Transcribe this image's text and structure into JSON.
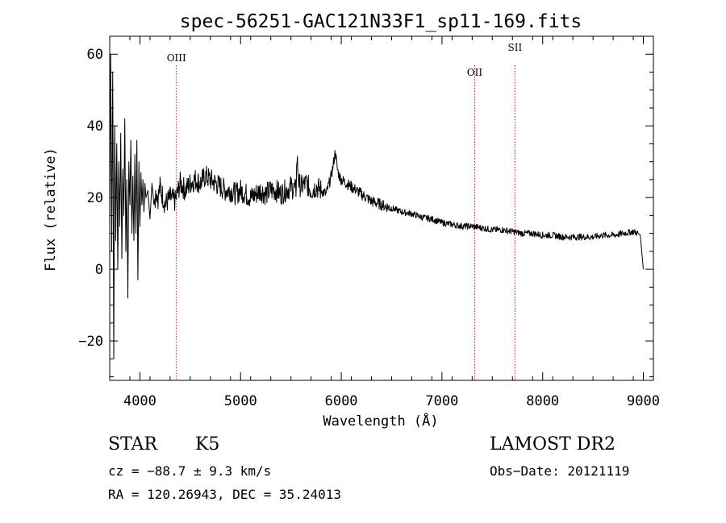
{
  "chart_data": {
    "type": "line",
    "title": "spec-56251-GAC121N33F1_sp11-169.fits",
    "xlabel": "Wavelength (Å)",
    "ylabel": "Flux (relative)",
    "xlim": [
      3700,
      9100
    ],
    "ylim": [
      -31,
      65
    ],
    "xticks": [
      4000,
      5000,
      6000,
      7000,
      8000,
      9000
    ],
    "yticks": [
      -20,
      0,
      20,
      40,
      60
    ],
    "grid": false,
    "line_color": "#000000",
    "marker_color": "#aa2222",
    "lines": [
      {
        "label": "OIII",
        "x": 4363,
        "label_y": 58
      },
      {
        "label": "OII",
        "x": 7325,
        "label_y": 54
      },
      {
        "label": "SII",
        "x": 7725,
        "label_y": 61
      }
    ],
    "series": [
      {
        "x": [
          3700,
          3710,
          3720,
          3730,
          3740,
          3750,
          3760,
          3770,
          3780,
          3790,
          3800,
          3810,
          3820,
          3830,
          3840,
          3850,
          3860,
          3870,
          3880,
          3890,
          3900,
          3910,
          3920,
          3930,
          3940,
          3950,
          3960,
          3970,
          3980,
          3990,
          4000,
          4010,
          4020,
          4030,
          4040,
          4050,
          4060,
          4080,
          4100,
          4120,
          4140,
          4160,
          4180,
          4200,
          4250,
          4300,
          4350,
          4400,
          4450,
          4500,
          4550,
          4600,
          4650,
          4700,
          4750,
          4800,
          4850,
          4900,
          4950,
          5000,
          5050,
          5100,
          5150,
          5200,
          5250,
          5300,
          5350,
          5400,
          5450,
          5500,
          5550,
          5560,
          5580,
          5600,
          5650,
          5700,
          5750,
          5800,
          5850,
          5900,
          5920,
          5940,
          5960,
          5980,
          6000,
          6050,
          6100,
          6150,
          6200,
          6300,
          6400,
          6500,
          6600,
          6700,
          6800,
          6900,
          7000,
          7100,
          7200,
          7300,
          7400,
          7500,
          7600,
          7700,
          7800,
          7900,
          8000,
          8100,
          8200,
          8300,
          8400,
          8500,
          8600,
          8700,
          8800,
          8900,
          8950,
          8970,
          8990,
          9000
        ],
        "y": [
          10,
          60,
          5,
          55,
          -25,
          40,
          8,
          35,
          0,
          30,
          12,
          38,
          3,
          28,
          15,
          42,
          5,
          25,
          -8,
          30,
          18,
          36,
          10,
          26,
          8,
          32,
          10,
          36,
          -3,
          30,
          12,
          27,
          18,
          25,
          16,
          24,
          20,
          22,
          14,
          24,
          18,
          22,
          20,
          23,
          18,
          20,
          19,
          24,
          22,
          24,
          25,
          24,
          26,
          25,
          24,
          23,
          22,
          22,
          21,
          22,
          21,
          20,
          21,
          22,
          21,
          22,
          22,
          21,
          22,
          23,
          22,
          31,
          24,
          23,
          24,
          22,
          23,
          22,
          21,
          26,
          29,
          33,
          28,
          26,
          25,
          24,
          23,
          22,
          21,
          19,
          18,
          17,
          16,
          15.5,
          14.5,
          14,
          13,
          12.5,
          12,
          12,
          11.5,
          11,
          11,
          10.5,
          10,
          10,
          9.5,
          9.5,
          9,
          9,
          9,
          9,
          9.5,
          9.5,
          10,
          10.5,
          10,
          9.5,
          3,
          0
        ]
      }
    ]
  },
  "info": {
    "object_class": "STAR",
    "subclass": "K5",
    "survey": "LAMOST DR2",
    "cz": "cz = −88.7 ± 9.3 km/s",
    "obs_date": "Obs−Date: 20121119",
    "coords": "RA = 120.26943, DEC =  35.24013"
  }
}
